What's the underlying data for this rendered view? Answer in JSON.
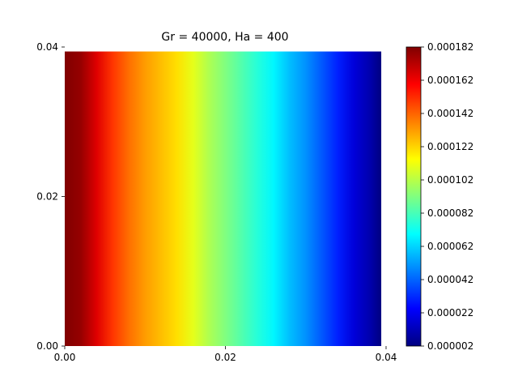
{
  "chart_data": {
    "type": "heatmap",
    "title": "Gr = 40000, Ha = 400",
    "xlabel": "",
    "ylabel": "",
    "colormap": "jet",
    "grid": false,
    "xlim": [
      0.0,
      0.04
    ],
    "ylim": [
      0.0,
      0.04
    ],
    "x_extent": [
      0.0,
      0.0394
    ],
    "y_extent": [
      0.0,
      0.0394
    ],
    "x_ticks": [
      {
        "value": 0.0,
        "label": "0.00"
      },
      {
        "value": 0.02,
        "label": "0.02"
      },
      {
        "value": 0.04,
        "label": "0.04"
      }
    ],
    "y_ticks": [
      {
        "value": 0.0,
        "label": "0.00"
      },
      {
        "value": 0.02,
        "label": "0.02"
      },
      {
        "value": 0.04,
        "label": "0.04"
      }
    ],
    "field_description": "value varies only along x (constant along y)",
    "profile": {
      "x": [
        0.0,
        0.002,
        0.004,
        0.006,
        0.008,
        0.01,
        0.012,
        0.014,
        0.016,
        0.018,
        0.02,
        0.022,
        0.024,
        0.026,
        0.028,
        0.03,
        0.032,
        0.034,
        0.036,
        0.038,
        0.0394
      ],
      "values": [
        0.000182,
        0.000178,
        0.000165,
        0.00015,
        0.00014,
        0.000132,
        0.000126,
        0.00012,
        0.00011,
        0.0001,
        9.2e-05,
        8.4e-05,
        7.6e-05,
        6.8e-05,
        5.8e-05,
        5e-05,
        4e-05,
        3e-05,
        1.8e-05,
        1e-05,
        2e-06
      ]
    },
    "colorbar": {
      "min": 2e-06,
      "max": 0.000182,
      "ticks": [
        {
          "value": 2e-06,
          "label": "0.000002"
        },
        {
          "value": 2.2e-05,
          "label": "0.000022"
        },
        {
          "value": 4.2e-05,
          "label": "0.000042"
        },
        {
          "value": 6.2e-05,
          "label": "0.000062"
        },
        {
          "value": 8.2e-05,
          "label": "0.000082"
        },
        {
          "value": 0.000102,
          "label": "0.000102"
        },
        {
          "value": 0.000122,
          "label": "0.000122"
        },
        {
          "value": 0.000142,
          "label": "0.000142"
        },
        {
          "value": 0.000162,
          "label": "0.000162"
        },
        {
          "value": 0.000182,
          "label": "0.000182"
        }
      ]
    }
  }
}
